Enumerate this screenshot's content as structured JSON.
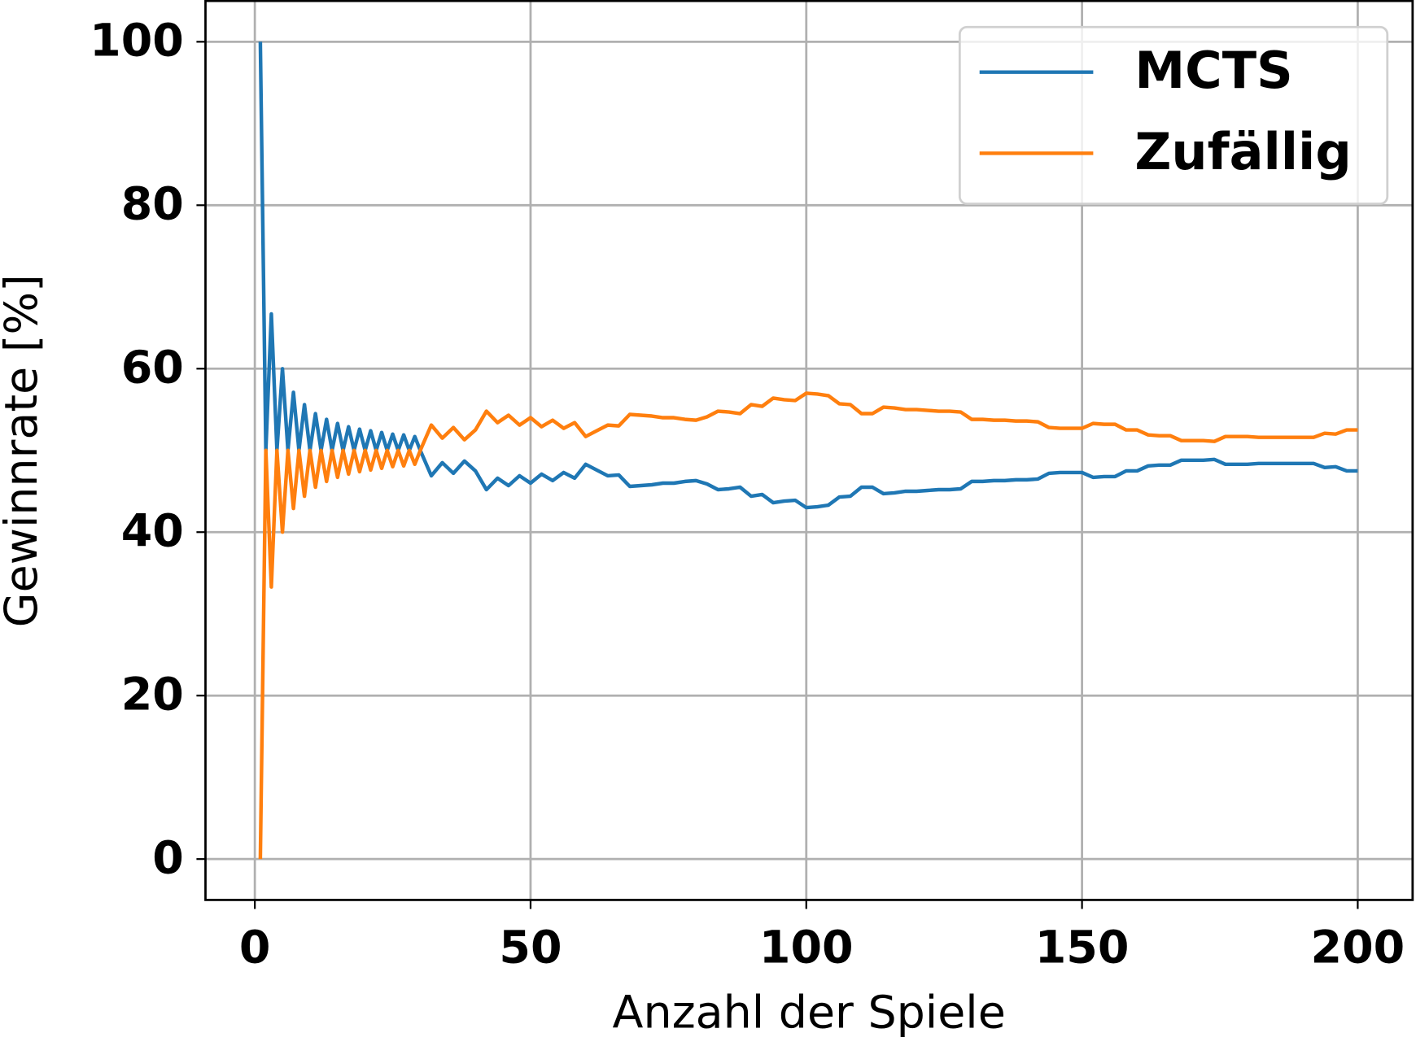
{
  "chart_data": {
    "type": "line",
    "xlabel": "Anzahl der Spiele",
    "ylabel": "Gewinnrate [%]",
    "x": [
      1,
      2,
      3,
      4,
      5,
      6,
      7,
      8,
      9,
      10,
      11,
      12,
      13,
      14,
      15,
      16,
      17,
      18,
      19,
      20,
      21,
      22,
      23,
      24,
      25,
      26,
      27,
      28,
      29,
      30,
      32,
      34,
      36,
      38,
      40,
      42,
      44,
      46,
      48,
      50,
      52,
      54,
      56,
      58,
      60,
      62,
      64,
      66,
      68,
      70,
      72,
      74,
      76,
      78,
      80,
      82,
      84,
      86,
      88,
      90,
      92,
      94,
      96,
      98,
      100,
      102,
      104,
      106,
      108,
      110,
      112,
      114,
      116,
      118,
      120,
      122,
      124,
      126,
      128,
      130,
      132,
      134,
      136,
      138,
      140,
      142,
      144,
      146,
      148,
      150,
      152,
      154,
      156,
      158,
      160,
      162,
      164,
      166,
      168,
      170,
      172,
      174,
      176,
      178,
      180,
      182,
      184,
      186,
      188,
      190,
      192,
      194,
      196,
      198,
      200
    ],
    "series": [
      {
        "name": "MCTS",
        "color": "#1f77b4",
        "values": [
          100,
          50,
          66.7,
          50,
          60,
          50,
          57.1,
          50,
          55.6,
          50,
          54.5,
          50,
          53.8,
          50,
          53.3,
          50,
          52.9,
          50,
          52.6,
          50,
          52.4,
          50,
          52.2,
          50,
          52,
          50,
          51.9,
          50,
          51.7,
          50,
          46.9,
          48.5,
          47.2,
          48.7,
          47.5,
          45.2,
          46.6,
          45.7,
          46.9,
          46,
          47.1,
          46.3,
          47.3,
          46.6,
          48.3,
          47.6,
          46.9,
          47,
          45.6,
          45.7,
          45.8,
          46,
          46,
          46.2,
          46.3,
          45.9,
          45.2,
          45.3,
          45.5,
          44.4,
          44.6,
          43.6,
          43.8,
          43.9,
          43,
          43.1,
          43.3,
          44.3,
          44.4,
          45.5,
          45.5,
          44.7,
          44.8,
          45,
          45,
          45.1,
          45.2,
          45.2,
          45.3,
          46.2,
          46.2,
          46.3,
          46.3,
          46.4,
          46.4,
          46.5,
          47.2,
          47.3,
          47.3,
          47.3,
          46.7,
          46.8,
          46.8,
          47.5,
          47.5,
          48.1,
          48.2,
          48.2,
          48.8,
          48.8,
          48.8,
          48.9,
          48.3,
          48.3,
          48.3,
          48.4,
          48.4,
          48.4,
          48.4,
          48.4,
          48.4,
          47.9,
          48,
          47.5,
          47.5
        ]
      },
      {
        "name": "Zufällig",
        "color": "#ff7f0e",
        "values": [
          0,
          50,
          33.3,
          50,
          40,
          50,
          42.9,
          50,
          44.4,
          50,
          45.5,
          50,
          46.2,
          50,
          46.7,
          50,
          47.1,
          50,
          47.4,
          50,
          47.6,
          50,
          47.8,
          50,
          48,
          50,
          48.1,
          50,
          48.3,
          50,
          53.1,
          51.5,
          52.8,
          51.3,
          52.5,
          54.8,
          53.4,
          54.3,
          53.1,
          54,
          52.9,
          53.7,
          52.7,
          53.4,
          51.7,
          52.4,
          53.1,
          53,
          54.4,
          54.3,
          54.2,
          54,
          54,
          53.8,
          53.7,
          54.1,
          54.8,
          54.7,
          54.5,
          55.6,
          55.4,
          56.4,
          56.2,
          56.1,
          57,
          56.9,
          56.7,
          55.7,
          55.6,
          54.5,
          54.5,
          55.3,
          55.2,
          55,
          55,
          54.9,
          54.8,
          54.8,
          54.7,
          53.8,
          53.8,
          53.7,
          53.7,
          53.6,
          53.6,
          53.5,
          52.8,
          52.7,
          52.7,
          52.7,
          53.3,
          53.2,
          53.2,
          52.5,
          52.5,
          51.9,
          51.8,
          51.8,
          51.2,
          51.2,
          51.2,
          51.1,
          51.7,
          51.7,
          51.7,
          51.6,
          51.6,
          51.6,
          51.6,
          51.6,
          51.6,
          52.1,
          52,
          52.5,
          52.5
        ]
      }
    ],
    "xlim": [
      -8.95,
      209.95
    ],
    "ylim": [
      -5,
      105
    ],
    "xticks": [
      0,
      50,
      100,
      150,
      200
    ],
    "yticks": [
      0,
      20,
      40,
      60,
      80,
      100
    ],
    "grid": true,
    "legend": "upper right"
  }
}
